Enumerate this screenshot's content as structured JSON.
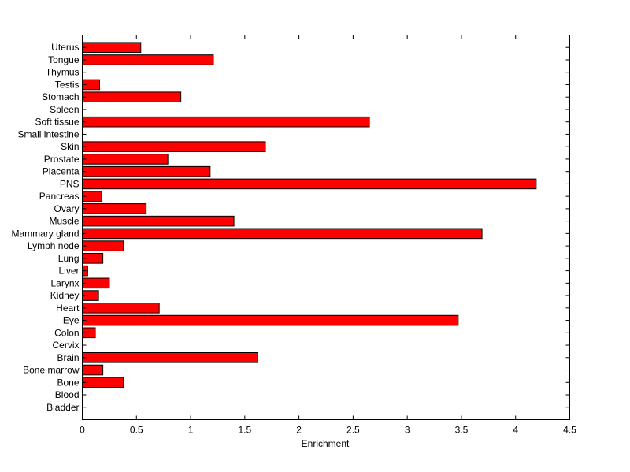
{
  "chart_data": {
    "type": "bar",
    "orientation": "horizontal",
    "xlabel": "Enrichment",
    "ylabel": "",
    "title": "",
    "xlim": [
      0,
      4.5
    ],
    "xticks": [
      0,
      0.5,
      1,
      1.5,
      2,
      2.5,
      3,
      3.5,
      4,
      4.5
    ],
    "tick_labels": [
      "0",
      "0.5",
      "1",
      "1.5",
      "2",
      "2.5",
      "3",
      "3.5",
      "4",
      "4.5"
    ],
    "grid": false,
    "bar_color": "#ff0000",
    "edge_color": "#000000",
    "categories": [
      "Bladder",
      "Blood",
      "Bone",
      "Bone marrow",
      "Brain",
      "Cervix",
      "Colon",
      "Eye",
      "Heart",
      "Kidney",
      "Larynx",
      "Liver",
      "Lung",
      "Lymph node",
      "Mammary gland",
      "Muscle",
      "Ovary",
      "Pancreas",
      "PNS",
      "Placenta",
      "Prostate",
      "Skin",
      "Small intestine",
      "Soft tissue",
      "Spleen",
      "Stomach",
      "Testis",
      "Thymus",
      "Tongue",
      "Uterus"
    ],
    "values": [
      0,
      0,
      0.38,
      0.19,
      1.62,
      0,
      0.12,
      3.47,
      0.71,
      0.15,
      0.25,
      0.05,
      0.19,
      0.38,
      3.69,
      1.4,
      0.59,
      0.18,
      4.19,
      1.18,
      0.79,
      1.69,
      0,
      2.65,
      0,
      0.91,
      0.16,
      0,
      1.21,
      0.54
    ]
  }
}
